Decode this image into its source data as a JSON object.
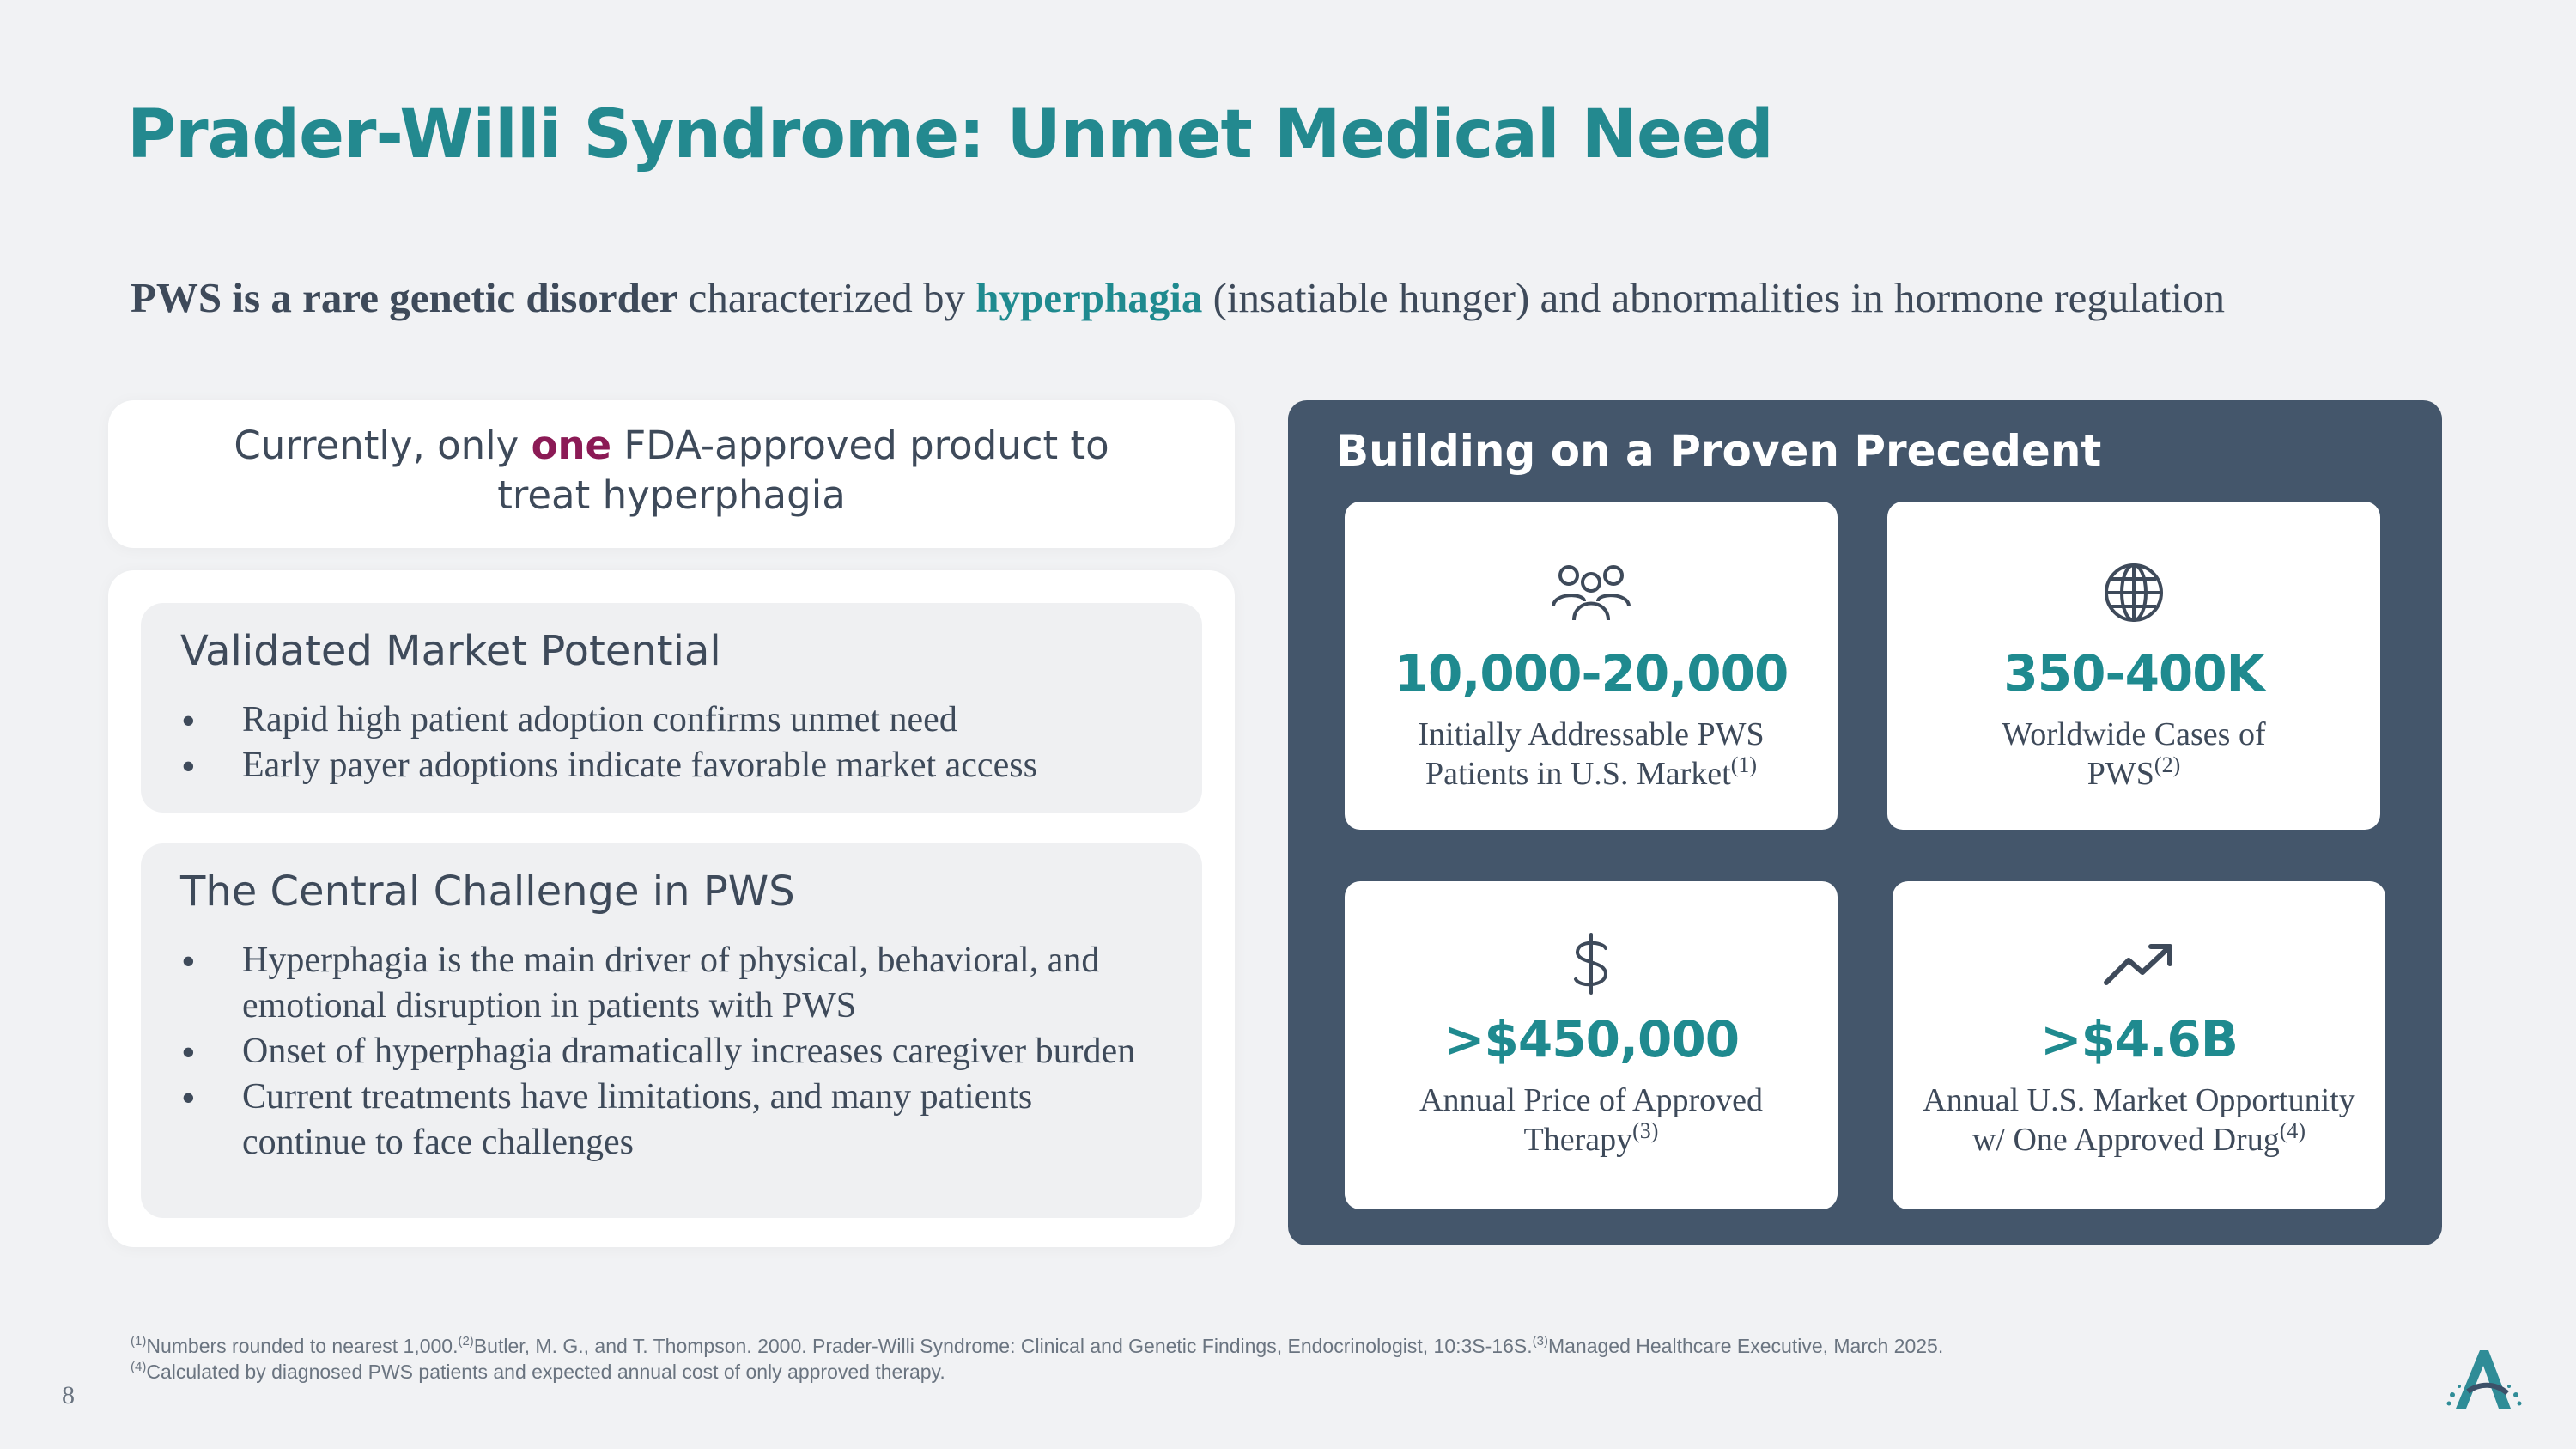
{
  "title": "Prader-Willi Syndrome: Unmet Medical Need",
  "subtitle": {
    "bold_lead": "PWS is a rare genetic disorder",
    "mid": " characterized by ",
    "highlight": "hyperphagia",
    "tail": " (insatiable hunger) and abnormalities in hormone regulation"
  },
  "fda_card": {
    "pre": "Currently, only ",
    "emphasis": "one",
    "post_line1": " FDA-approved product to",
    "line2": "treat hyperphagia"
  },
  "market_box": {
    "title": "Validated Market Potential",
    "bullets": [
      "Rapid high patient adoption confirms unmet need",
      "Early payer adoptions indicate favorable market access"
    ]
  },
  "challenge_box": {
    "title": "The Central Challenge in PWS",
    "bullets": [
      "Hyperphagia is the main driver of physical, behavioral, and emotional disruption in patients with PWS",
      "Onset of hyperphagia dramatically increases caregiver burden",
      "Current treatments have limitations, and many patients continue to face challenges"
    ]
  },
  "precedent": {
    "title": "Building on a Proven Precedent",
    "stats": [
      {
        "icon": "people-icon",
        "value": "10,000-20,000",
        "label_l1": "Initially Addressable PWS",
        "label_l2": "Patients in U.S. Market",
        "sup": "(1)"
      },
      {
        "icon": "globe-icon",
        "value": "350-400K",
        "label_l1": "Worldwide Cases of",
        "label_l2": "PWS",
        "sup": "(2)"
      },
      {
        "icon": "dollar-icon",
        "value": ">$450,000",
        "label_l1": "Annual Price of Approved",
        "label_l2": "Therapy",
        "sup": "(3)"
      },
      {
        "icon": "trend-up-icon",
        "value": ">$4.6B",
        "label_l1": "Annual U.S. Market Opportunity",
        "label_l2": "w/ One Approved Drug",
        "sup": "(4)"
      }
    ]
  },
  "footnote": {
    "n1": "(1)",
    "t1": "Numbers rounded to nearest 1,000.",
    "n2": "(2)",
    "t2": "Butler, M. G., and T. Thompson. 2000. Prader-Willi Syndrome: Clinical and Genetic Findings, Endocrinologist, 10:3S-16S.",
    "n3": "(3)",
    "t3": "Managed Healthcare Executive, March 2025. ",
    "n4": "(4)",
    "t4": "Calculated by diagnosed PWS patients and expected annual cost of only approved therapy."
  },
  "page_number": "8",
  "colors": {
    "teal": "#1f8a8f",
    "slate": "#44566b",
    "emphasis": "#8b1a55",
    "background": "#f1f2f4"
  }
}
